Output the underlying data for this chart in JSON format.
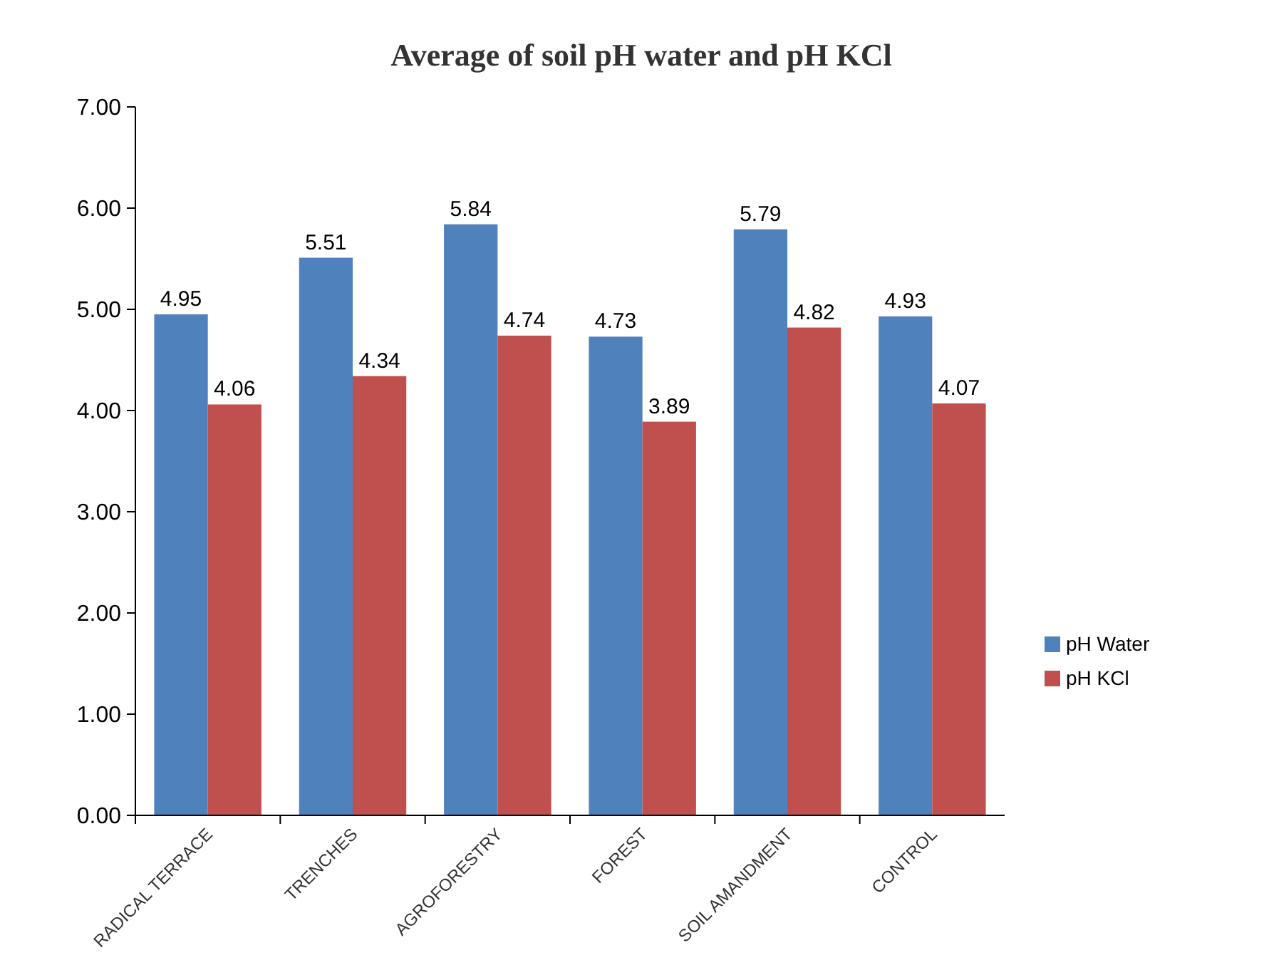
{
  "chart_data": {
    "type": "bar",
    "title": "Average of soil pH water and pH KCl",
    "categories": [
      "RADICAL TERRACE",
      "TRENCHES",
      "AGROFORESTRY",
      "FOREST",
      "SOIL AMANDMENT",
      "CONTROL"
    ],
    "series": [
      {
        "name": "pH Water",
        "color": "#4f81bd",
        "values": [
          4.95,
          5.51,
          5.84,
          4.73,
          5.79,
          4.93
        ]
      },
      {
        "name": "pH KCl",
        "color": "#c0504d",
        "values": [
          4.06,
          4.34,
          4.74,
          3.89,
          4.82,
          4.07
        ]
      }
    ],
    "ylim": [
      0,
      7
    ],
    "yticks": [
      {
        "value": 0,
        "label": "0.00"
      },
      {
        "value": 1,
        "label": "1.00"
      },
      {
        "value": 2,
        "label": "2.00"
      },
      {
        "value": 3,
        "label": "3.00"
      },
      {
        "value": 4,
        "label": "4.00"
      },
      {
        "value": 5,
        "label": "5.00"
      },
      {
        "value": 6,
        "label": "6.00"
      },
      {
        "value": 7,
        "label": "7.00"
      }
    ],
    "data_labels": true,
    "legend": "right",
    "grid": false
  }
}
